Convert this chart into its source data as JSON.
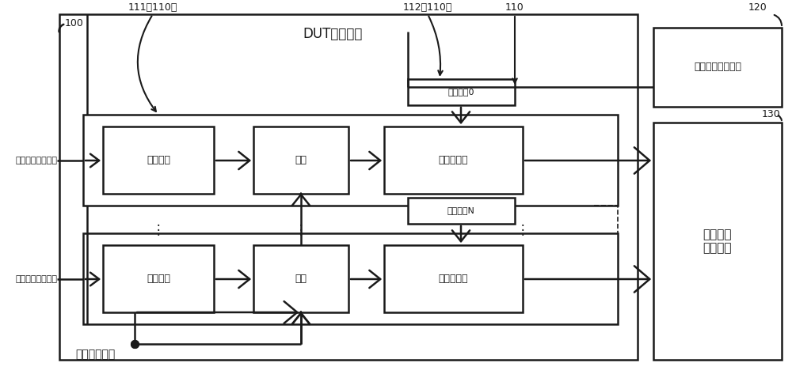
{
  "bg_color": "#ffffff",
  "line_color": "#1a1a1a",
  "title": "DUT被测芯片",
  "label_100": "100",
  "label_111": "111（110）",
  "label_112": "112（110）",
  "label_110": "110",
  "label_120": "120",
  "label_130": "130",
  "text_delay": "延时模块",
  "text_sample": "采样",
  "text_buffer": "第一缓存器",
  "text_rcv0": "接收电路0",
  "text_rcvN": "接收电路N",
  "text_120": "数据读取控制模块",
  "text_130_line1": "用户测试",
  "text_130_line2": "逗辑模块",
  "text_recv_data": "接收测试数据信号",
  "text_send_clk": "发送时钟信号"
}
